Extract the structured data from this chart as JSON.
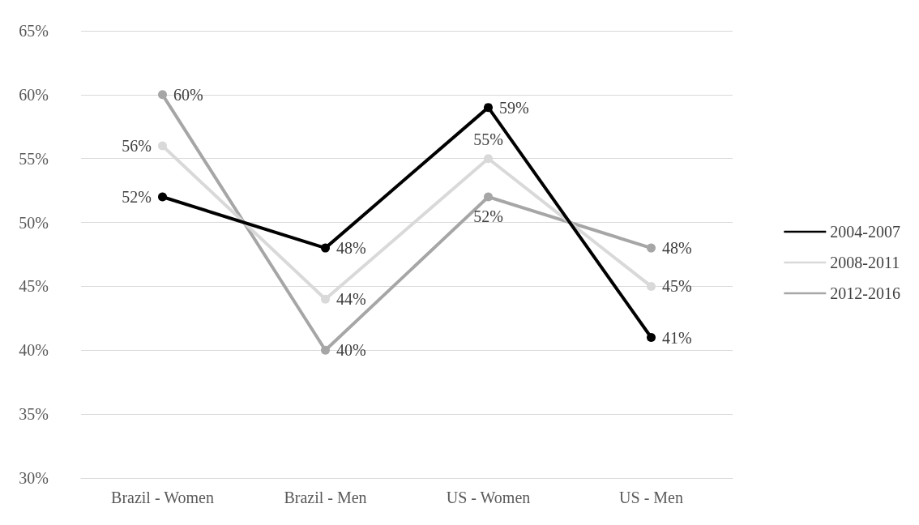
{
  "chart_data": {
    "type": "line",
    "categories": [
      "Brazil - Women",
      "Brazil - Men",
      "US - Women",
      "US - Men"
    ],
    "series": [
      {
        "name": "2004-2007",
        "color": "#000000",
        "values": [
          52,
          48,
          59,
          41
        ],
        "value_labels": [
          "52%",
          "48%",
          "59%",
          "41%"
        ]
      },
      {
        "name": "2008-2011",
        "color": "#d9d9d9",
        "values": [
          56,
          44,
          55,
          45
        ],
        "value_labels": [
          "56%",
          "44%",
          "55%",
          "45%"
        ]
      },
      {
        "name": "2012-2016",
        "color": "#a6a6a6",
        "values": [
          60,
          40,
          52,
          48
        ],
        "value_labels": [
          "60%",
          "40%",
          "52%",
          "48%"
        ]
      }
    ],
    "ylim": [
      30,
      65
    ],
    "yticks": [
      {
        "value": 30,
        "label": "30%"
      },
      {
        "value": 35,
        "label": "35%"
      },
      {
        "value": 40,
        "label": "40%"
      },
      {
        "value": 45,
        "label": "45%"
      },
      {
        "value": 50,
        "label": "50%"
      },
      {
        "value": 55,
        "label": "55%"
      },
      {
        "value": 60,
        "label": "60%"
      },
      {
        "value": 65,
        "label": "65%"
      }
    ],
    "grid": "y",
    "legend": "right",
    "marker": "circle",
    "line_style": "solid"
  }
}
